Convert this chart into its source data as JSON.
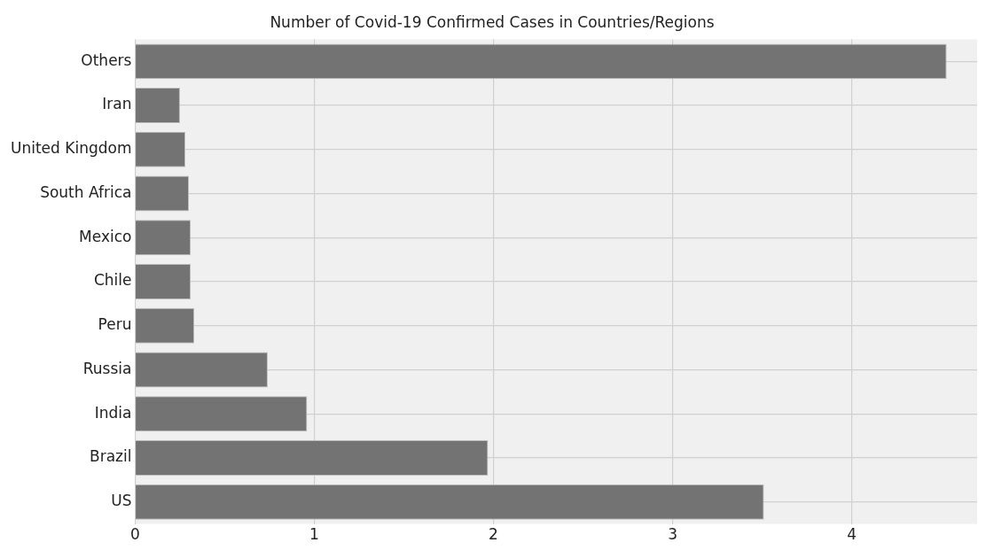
{
  "chart_data": {
    "type": "bar",
    "orientation": "horizontal",
    "title": "Number of Covid-19 Confirmed Cases in Countries/Regions",
    "categories": [
      "Others",
      "Iran",
      "United Kingdom",
      "South Africa",
      "Mexico",
      "Chile",
      "Peru",
      "Russia",
      "India",
      "Brazil",
      "US"
    ],
    "values": [
      4.53,
      0.25,
      0.28,
      0.3,
      0.31,
      0.31,
      0.33,
      0.74,
      0.96,
      1.97,
      3.51
    ],
    "color": "#737373",
    "xlim": [
      0,
      4.7
    ],
    "xticks": [
      0,
      1,
      2,
      3,
      4
    ],
    "grid": true
  }
}
